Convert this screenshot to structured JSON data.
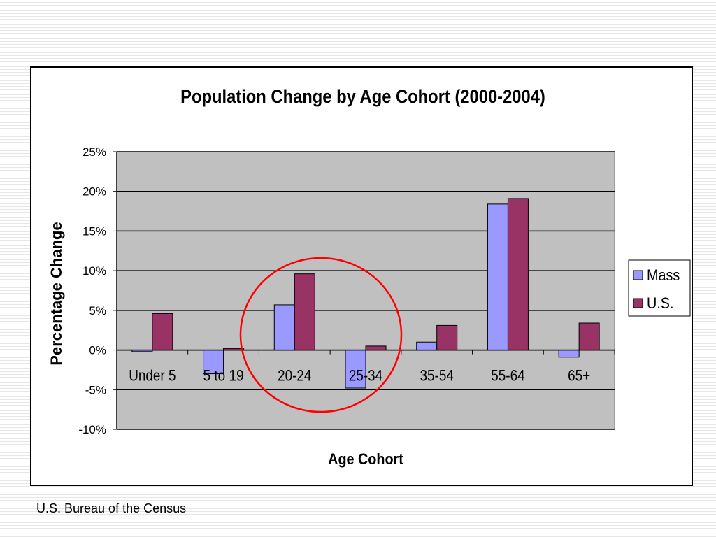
{
  "chart_data": {
    "type": "bar",
    "title": "Population Change by Age Cohort (2000-2004)",
    "xlabel": "Age Cohort",
    "ylabel": "Percentage Change",
    "categories": [
      "Under 5",
      "5 to 19",
      "20-24",
      "25-34",
      "35-54",
      "55-64",
      "65+"
    ],
    "series": [
      {
        "name": "Mass",
        "color": "#9999ff",
        "values": [
          -0.2,
          -3.0,
          5.7,
          -4.8,
          1.0,
          18.4,
          -0.9
        ]
      },
      {
        "name": "U.S.",
        "color": "#993366",
        "values": [
          4.6,
          0.2,
          9.6,
          0.5,
          3.1,
          19.1,
          3.4
        ]
      }
    ],
    "ylim": [
      -10,
      25
    ],
    "yticks": [
      25,
      20,
      15,
      10,
      5,
      0,
      -5,
      -10
    ],
    "ytick_labels": [
      "25%",
      "20%",
      "15%",
      "10%",
      "5%",
      "0%",
      "-5%",
      "-10%"
    ],
    "grid": true,
    "plot_background": "#c0c0c0",
    "legend_position": "right",
    "annotation": {
      "shape": "circle",
      "color": "#ff0000",
      "highlights": [
        "20-24",
        "25-34"
      ]
    }
  },
  "footer": {
    "source": "U.S. Bureau of the Census"
  }
}
